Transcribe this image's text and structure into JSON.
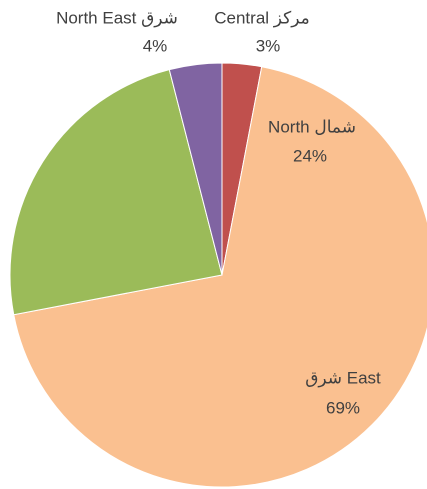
{
  "chart_data": {
    "type": "pie",
    "categories": [
      "Central مركز",
      "شرق East",
      "North شمال",
      "North East شرق"
    ],
    "values": [
      3,
      69,
      24,
      4
    ],
    "value_labels": [
      "3%",
      "69%",
      "24%",
      "4%"
    ],
    "colors": [
      "#c0504d",
      "#fac090",
      "#9bbb59",
      "#8064a2"
    ]
  }
}
